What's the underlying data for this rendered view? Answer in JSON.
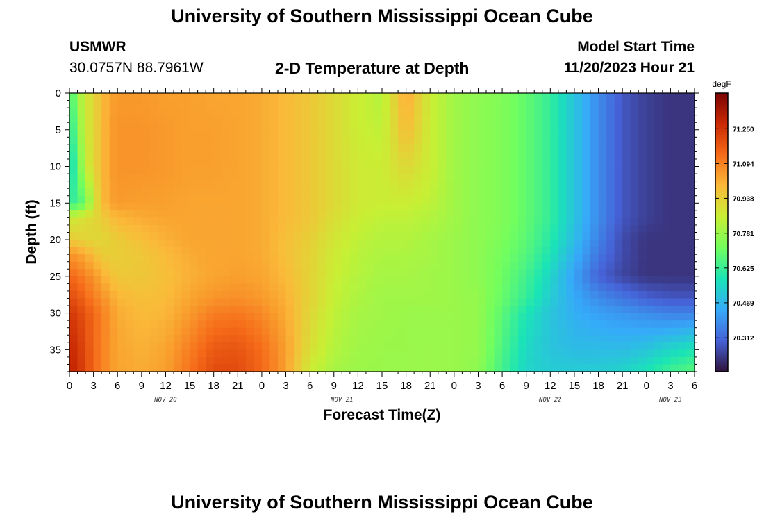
{
  "page": {
    "title_top": "University of Southern Mississippi Ocean Cube",
    "title_bottom": "University of Southern Mississippi Ocean Cube",
    "station_id": "USMWR",
    "station_coords": "30.0757N  88.7961W",
    "plot_title": "2-D Temperature at Depth",
    "model_start_label": "Model Start Time",
    "model_start_value": "11/20/2023 Hour 21"
  },
  "chart_data": {
    "type": "heatmap",
    "title": "2-D Temperature at Depth",
    "xlabel": "Forecast Time(Z)",
    "ylabel": "Depth (ft)",
    "units": "degF",
    "x_range_hours": [
      0,
      78
    ],
    "y_range_ft": [
      0,
      38
    ],
    "x_tick_labels": [
      "0",
      "3",
      "6",
      "9",
      "12",
      "15",
      "18",
      "21",
      "0",
      "3",
      "6",
      "9",
      "12",
      "15",
      "18",
      "21",
      "0",
      "3",
      "6",
      "9",
      "12",
      "15",
      "18",
      "21",
      "0",
      "3",
      "6"
    ],
    "y_tick_values": [
      0,
      5,
      10,
      15,
      20,
      25,
      30,
      35
    ],
    "day_labels": [
      {
        "text": "NOV 20",
        "hour": 12
      },
      {
        "text": "NOV 21",
        "hour": 34
      },
      {
        "text": "NOV 22",
        "hour": 60
      },
      {
        "text": "NOV 23",
        "hour": 75
      }
    ],
    "colorbar": {
      "min": 70.16,
      "max": 71.41,
      "ticks": [
        "71.250",
        "71.094",
        "70.938",
        "70.781",
        "70.625",
        "70.469",
        "70.312"
      ],
      "colors": [
        "#30123b",
        "#4662d7",
        "#36aaf9",
        "#1ae4b6",
        "#72fe5e",
        "#c8ef34",
        "#faba39",
        "#f66b19",
        "#ca2a04",
        "#7a0403"
      ]
    },
    "grid_note": "Temperature field sampled on forecast-hour × depth grid; values in degF",
    "temperature_rows": {
      "depths_ft": [
        0,
        5,
        10,
        15,
        17,
        20,
        22,
        25,
        28,
        30,
        35,
        38
      ],
      "hours": [
        0,
        1,
        2,
        3,
        4,
        5,
        6,
        9,
        12,
        15,
        18,
        21,
        24,
        27,
        30,
        33,
        36,
        39,
        42,
        45,
        48,
        51,
        54,
        57,
        60,
        63,
        66,
        69,
        72,
        75,
        78
      ],
      "values": [
        [
          70.62,
          70.78,
          70.86,
          70.92,
          70.98,
          71.03,
          71.05,
          71.05,
          71.04,
          71.04,
          71.03,
          71.03,
          71.02,
          70.99,
          70.96,
          70.91,
          70.86,
          70.82,
          71.03,
          70.86,
          70.79,
          70.76,
          70.74,
          70.69,
          70.62,
          70.5,
          70.38,
          70.28,
          70.24,
          70.22,
          70.22
        ],
        [
          70.56,
          70.74,
          70.86,
          70.92,
          70.98,
          71.04,
          71.06,
          71.06,
          71.05,
          71.04,
          71.04,
          71.03,
          71.02,
          70.99,
          70.96,
          70.91,
          70.86,
          70.84,
          70.99,
          70.86,
          70.79,
          70.76,
          70.74,
          70.69,
          70.62,
          70.5,
          70.38,
          70.28,
          70.24,
          70.22,
          70.22
        ],
        [
          70.52,
          70.68,
          70.84,
          70.92,
          70.98,
          71.04,
          71.06,
          71.06,
          71.05,
          71.04,
          71.04,
          71.03,
          71.02,
          70.99,
          70.96,
          70.91,
          70.87,
          70.86,
          70.92,
          70.86,
          70.79,
          70.76,
          70.74,
          70.69,
          70.62,
          70.5,
          70.38,
          70.28,
          70.24,
          70.22,
          70.22
        ],
        [
          70.62,
          70.64,
          70.7,
          70.86,
          70.98,
          71.03,
          71.05,
          71.04,
          71.04,
          71.03,
          71.03,
          71.03,
          71.02,
          70.99,
          70.96,
          70.91,
          70.87,
          70.86,
          70.86,
          70.84,
          70.79,
          70.76,
          70.74,
          70.69,
          70.62,
          70.5,
          70.38,
          70.28,
          70.24,
          70.22,
          70.22
        ],
        [
          70.86,
          70.88,
          70.9,
          70.92,
          70.94,
          70.98,
          71.0,
          71.02,
          71.03,
          71.03,
          71.03,
          71.03,
          71.02,
          70.99,
          70.96,
          70.9,
          70.86,
          70.84,
          70.84,
          70.82,
          70.79,
          70.76,
          70.74,
          70.69,
          70.62,
          70.5,
          70.38,
          70.28,
          70.24,
          70.22,
          70.22
        ],
        [
          70.96,
          70.94,
          70.93,
          70.92,
          70.92,
          70.93,
          70.95,
          70.98,
          71.01,
          71.03,
          71.03,
          71.03,
          71.02,
          70.98,
          70.94,
          70.88,
          70.84,
          70.82,
          70.82,
          70.8,
          70.78,
          70.76,
          70.73,
          70.68,
          70.6,
          70.48,
          70.36,
          70.26,
          70.22,
          70.22,
          70.22
        ],
        [
          71.06,
          71.04,
          71.02,
          70.98,
          70.95,
          70.94,
          70.94,
          70.96,
          70.99,
          71.02,
          71.03,
          71.03,
          71.02,
          70.98,
          70.93,
          70.87,
          70.83,
          70.81,
          70.81,
          70.8,
          70.78,
          70.76,
          70.72,
          70.67,
          70.58,
          70.46,
          70.34,
          70.26,
          70.22,
          70.22,
          70.22
        ],
        [
          71.14,
          71.12,
          71.09,
          71.06,
          71.02,
          70.98,
          70.96,
          70.96,
          70.98,
          71.01,
          71.03,
          71.04,
          71.03,
          70.99,
          70.93,
          70.86,
          70.82,
          70.8,
          70.8,
          70.79,
          70.78,
          70.76,
          70.71,
          70.64,
          70.54,
          70.42,
          70.3,
          70.25,
          70.22,
          70.22,
          70.22
        ],
        [
          71.2,
          71.18,
          71.14,
          71.1,
          71.07,
          71.04,
          71.0,
          70.98,
          70.99,
          71.03,
          71.06,
          71.07,
          71.05,
          71.01,
          70.93,
          70.85,
          70.81,
          70.79,
          70.79,
          70.79,
          70.78,
          70.77,
          70.7,
          70.62,
          70.52,
          70.44,
          70.38,
          70.34,
          70.3,
          70.28,
          70.28
        ],
        [
          71.24,
          71.22,
          71.18,
          71.14,
          71.1,
          71.06,
          71.02,
          70.99,
          71.0,
          71.05,
          71.1,
          71.11,
          71.08,
          71.02,
          70.92,
          70.84,
          70.8,
          70.79,
          70.78,
          70.78,
          70.78,
          70.77,
          70.68,
          70.58,
          70.5,
          70.45,
          70.42,
          70.4,
          70.38,
          70.36,
          70.36
        ],
        [
          71.28,
          71.25,
          71.2,
          71.14,
          71.1,
          71.06,
          71.03,
          71.01,
          71.03,
          71.1,
          71.17,
          71.18,
          71.13,
          71.04,
          70.9,
          70.82,
          70.79,
          70.78,
          70.78,
          70.78,
          70.78,
          70.77,
          70.66,
          70.55,
          70.5,
          70.48,
          70.48,
          70.48,
          70.5,
          70.54,
          70.58
        ],
        [
          71.3,
          71.26,
          71.21,
          71.14,
          71.1,
          71.06,
          71.03,
          71.02,
          71.04,
          71.12,
          71.2,
          71.2,
          71.14,
          71.04,
          70.86,
          70.8,
          70.78,
          70.78,
          70.78,
          70.78,
          70.78,
          70.76,
          70.64,
          70.54,
          70.52,
          70.52,
          70.52,
          70.54,
          70.58,
          70.64,
          70.68
        ]
      ]
    }
  }
}
